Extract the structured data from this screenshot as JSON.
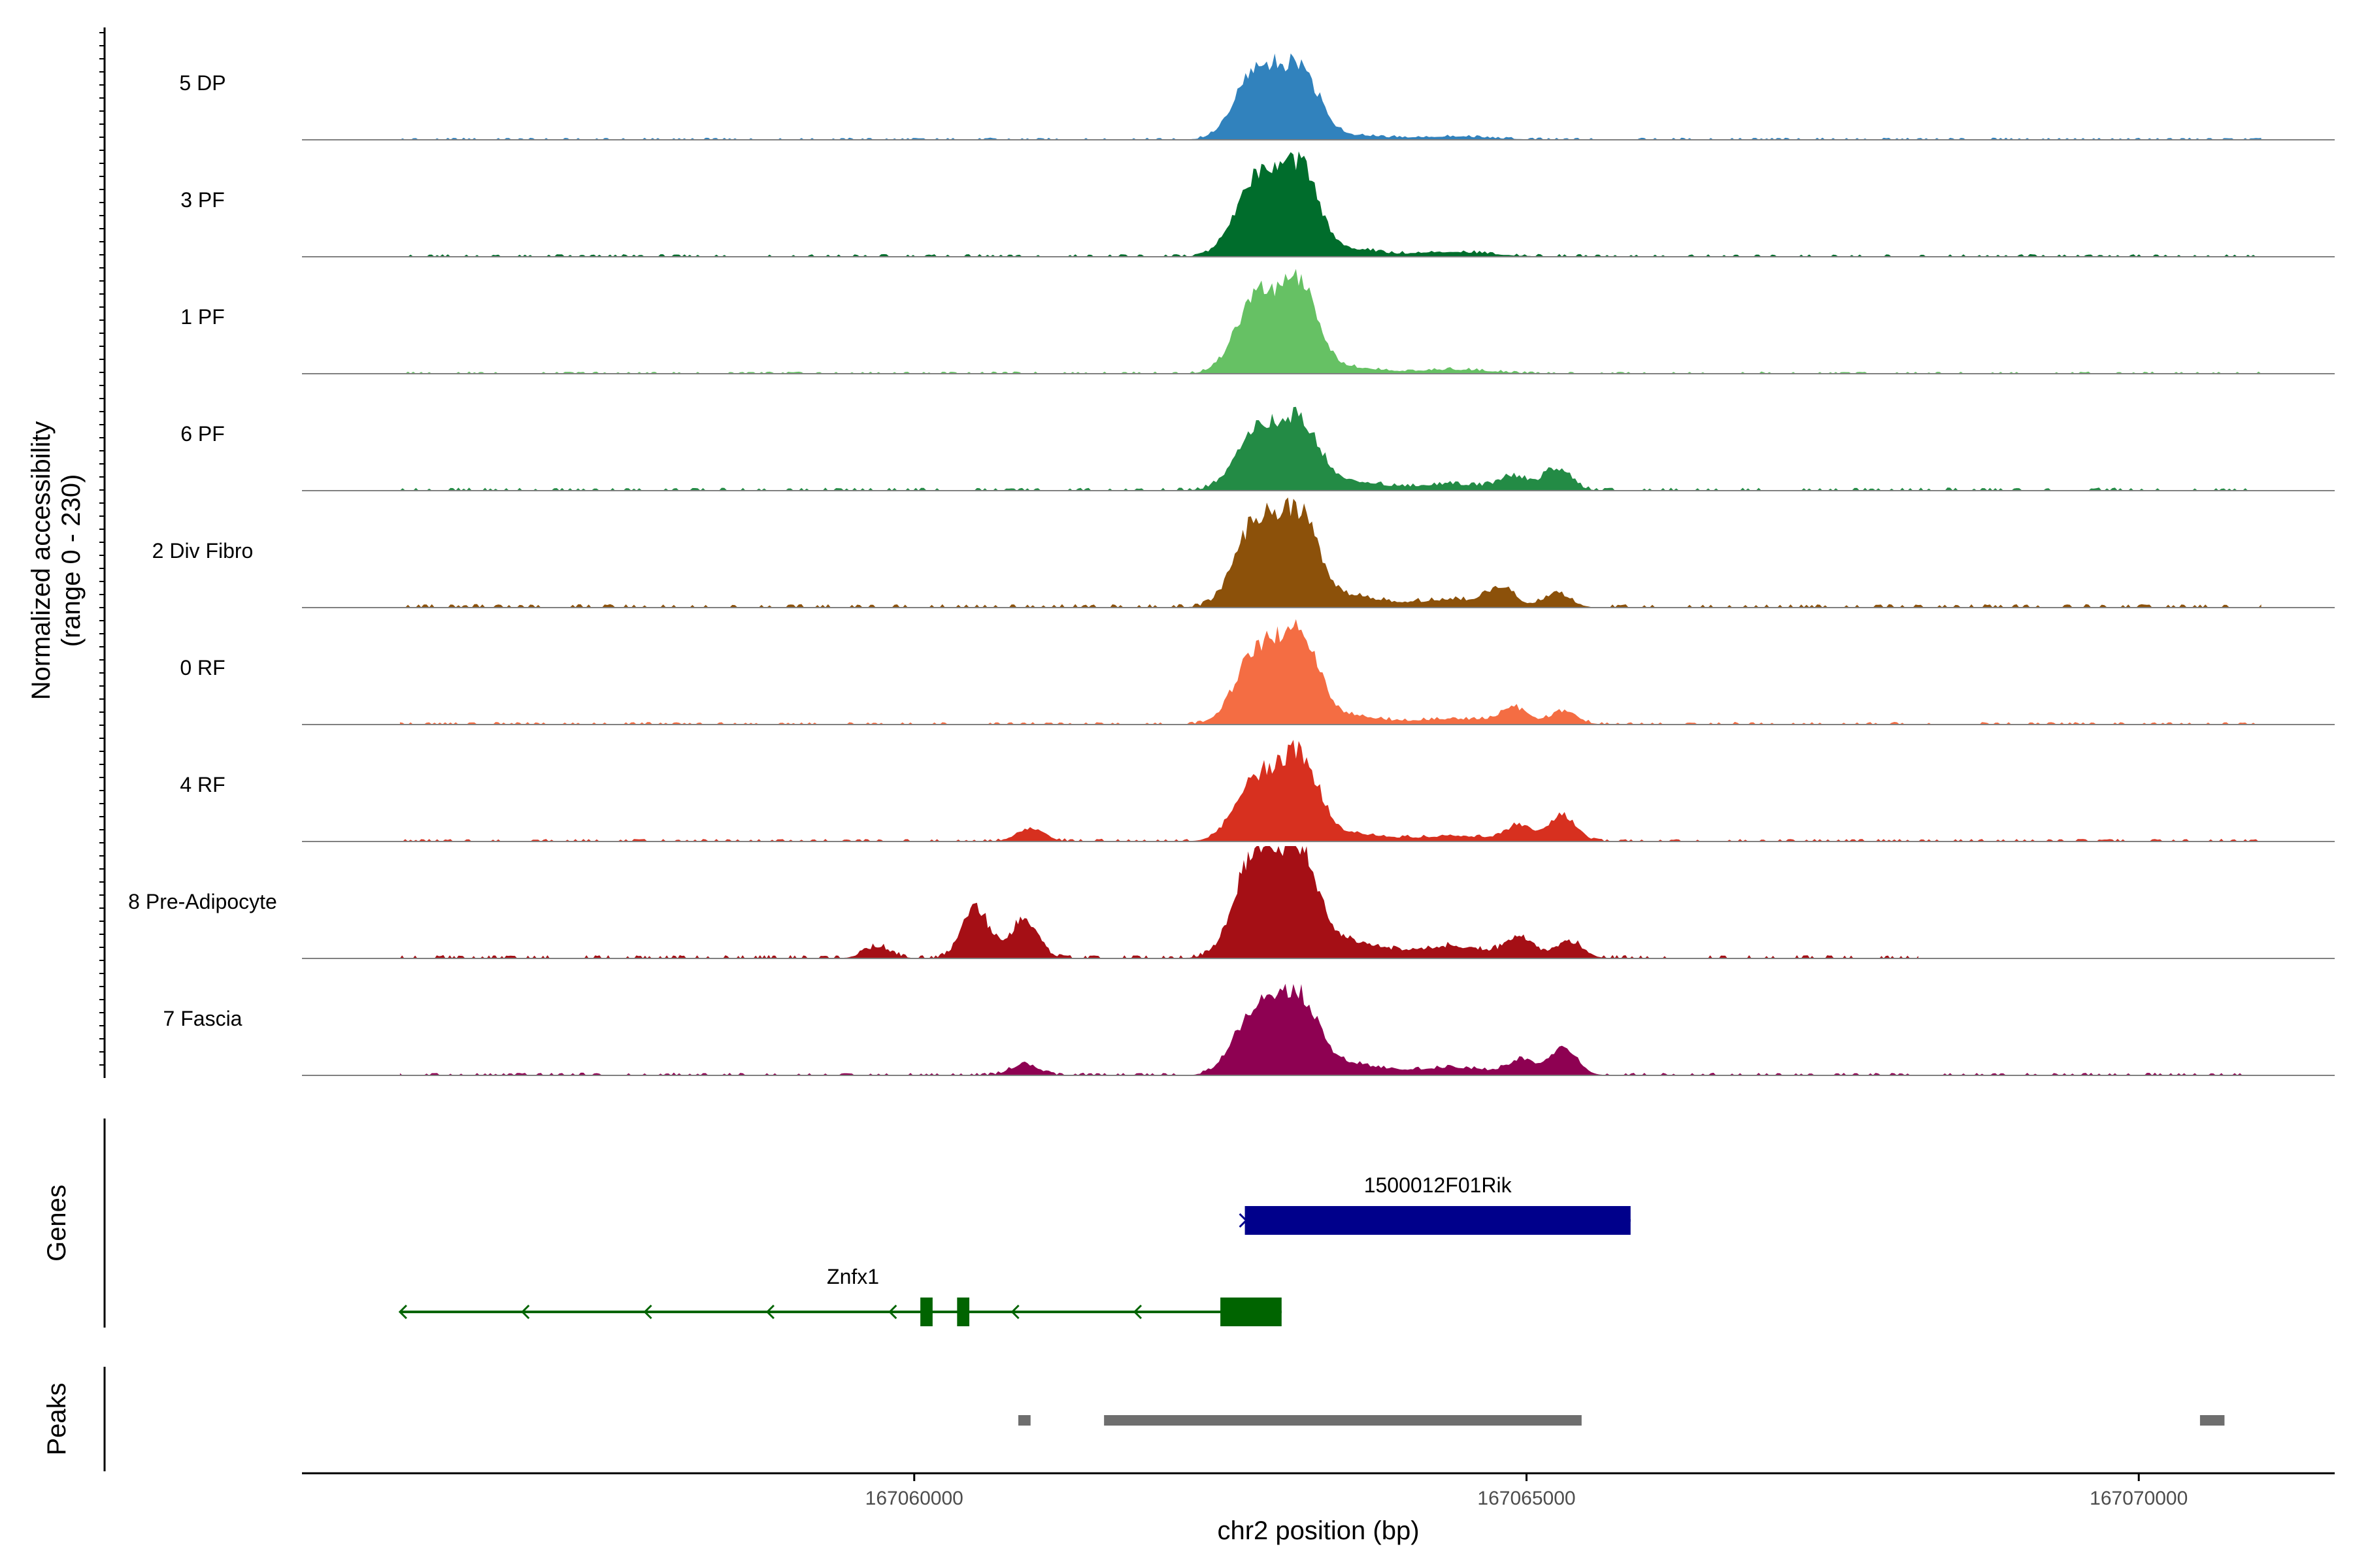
{
  "chart_data": {
    "type": "area",
    "coverage": {
      "ylabel_line1": "Normalized accessibility",
      "ylabel_line2": "(range 0 - 230)",
      "yrange": [
        0,
        230
      ],
      "tracks": [
        {
          "name": "5 DP",
          "color": "#3182bd",
          "base": 0.1,
          "p1": 0.62,
          "p2": 0.6,
          "side": 0.04,
          "extra": []
        },
        {
          "name": "3 PF",
          "color": "#006d2c",
          "base": 0.12,
          "p1": 0.7,
          "p2": 0.75,
          "side": 0.06,
          "extra": []
        },
        {
          "name": "1 PF",
          "color": "#66c164",
          "base": 0.1,
          "p1": 0.66,
          "p2": 0.72,
          "side": 0.05,
          "extra": []
        },
        {
          "name": "6 PF",
          "color": "#238b45",
          "base": 0.14,
          "p1": 0.55,
          "p2": 0.58,
          "side": 0.08,
          "extra": [
            {
              "pos": 167065250,
              "h": 0.2
            },
            {
              "pos": 167064900,
              "h": 0.12
            }
          ]
        },
        {
          "name": "2 Div Fibro",
          "color": "#8c510a",
          "base": 0.16,
          "p1": 0.78,
          "p2": 0.76,
          "side": 0.1,
          "extra": [
            {
              "pos": 167064800,
              "h": 0.14
            },
            {
              "pos": 167065250,
              "h": 0.12
            }
          ]
        },
        {
          "name": "0 RF",
          "color": "#f46d43",
          "base": 0.12,
          "p1": 0.65,
          "p2": 0.78,
          "side": 0.07,
          "extra": [
            {
              "pos": 167064900,
              "h": 0.14
            },
            {
              "pos": 167065300,
              "h": 0.12
            }
          ]
        },
        {
          "name": "4 RF",
          "color": "#d7301f",
          "base": 0.12,
          "p1": 0.55,
          "p2": 0.72,
          "side": 0.07,
          "extra": [
            {
              "pos": 167060950,
              "h": 0.12
            },
            {
              "pos": 167064950,
              "h": 0.14
            },
            {
              "pos": 167065300,
              "h": 0.22
            }
          ]
        },
        {
          "name": "8 Pre-Adipocyte",
          "color": "#a50f15",
          "base": 0.16,
          "p1": 0.95,
          "p2": 0.85,
          "side": 0.15,
          "extra": [
            {
              "pos": 167060500,
              "h": 0.45
            },
            {
              "pos": 167060900,
              "h": 0.35
            },
            {
              "pos": 167064950,
              "h": 0.18
            },
            {
              "pos": 167065350,
              "h": 0.15
            },
            {
              "pos": 167059700,
              "h": 0.1
            }
          ]
        },
        {
          "name": "7 Fascia",
          "color": "#8e0152",
          "base": 0.12,
          "p1": 0.6,
          "p2": 0.64,
          "side": 0.1,
          "extra": [
            {
              "pos": 167060900,
              "h": 0.1
            },
            {
              "pos": 167064950,
              "h": 0.12
            },
            {
              "pos": 167065300,
              "h": 0.25
            }
          ]
        }
      ]
    },
    "genes_label": "Genes",
    "genes": [
      {
        "name": "1500012F01Rik",
        "strand": "+",
        "start": 167062700,
        "end": 167065850,
        "color": "#00008b",
        "exons": [
          [
            167062700,
            167065850
          ]
        ]
      },
      {
        "name": "Znfx1",
        "strand": "-",
        "start": 167055800,
        "end": 167063000,
        "color": "#006400",
        "exons": [
          [
            167060050,
            167060150
          ],
          [
            167060350,
            167060450
          ],
          [
            167062500,
            167063000
          ]
        ]
      }
    ],
    "peaks_label": "Peaks",
    "peaks": [
      [
        167060850,
        167060950
      ],
      [
        167061550,
        167065450
      ],
      [
        167070500,
        167070700
      ]
    ],
    "xlabel": "chr2 position (bp)",
    "xlim": [
      167055000,
      167071600
    ],
    "xticks": [
      167060000,
      167065000,
      167070000
    ],
    "xtick_labels": [
      "167060000",
      "167065000",
      "167070000"
    ],
    "track_extent": [
      167055800,
      167071000
    ],
    "preadipocyte_extent": [
      167055800,
      167068200
    ]
  }
}
